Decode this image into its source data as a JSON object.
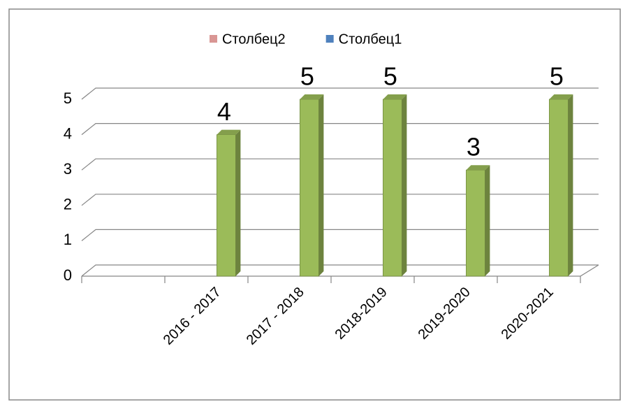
{
  "chart_data": {
    "type": "bar",
    "categories": [
      null,
      "2016 - 2017",
      "2017 - 2018",
      "2018-2019",
      "2019-2020",
      "2020-2021"
    ],
    "series": [
      {
        "name": "Столбец2",
        "color": "#d99694",
        "values": [
          null,
          null,
          null,
          null,
          null,
          null
        ]
      },
      {
        "name": "Столбец1",
        "color": "#4f81bd",
        "values": [
          null,
          null,
          null,
          null,
          null,
          null
        ]
      },
      {
        "color": "#9bbb59",
        "values": [
          null,
          4,
          5,
          5,
          3,
          5
        ]
      }
    ],
    "ylim": [
      0,
      5
    ],
    "yticks": [
      0,
      1,
      2,
      3,
      4,
      5
    ],
    "grid": true,
    "legend": "top"
  }
}
